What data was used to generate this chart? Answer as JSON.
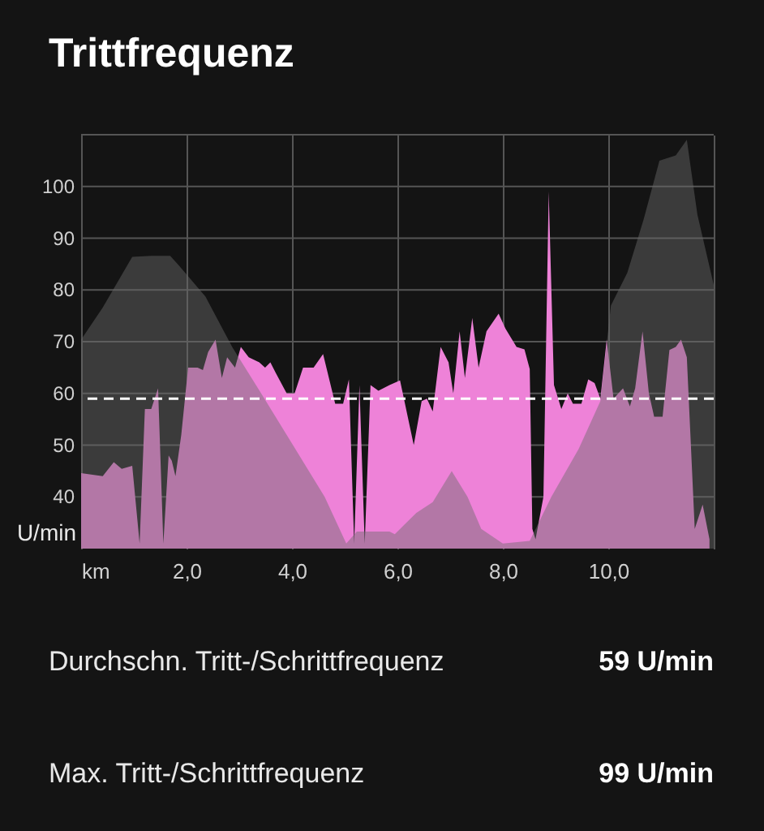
{
  "chart_data": {
    "type": "area",
    "title": "Trittfrequenz",
    "ylabel": "U/min",
    "x": [
      0,
      0.41,
      0.62,
      0.77,
      0.97,
      1.11,
      1.21,
      1.33,
      1.46,
      1.56,
      1.66,
      1.72,
      1.79,
      1.9,
      2.03,
      2.21,
      2.31,
      2.41,
      2.55,
      2.67,
      2.77,
      2.92,
      3.03,
      3.18,
      3.38,
      3.49,
      3.59,
      3.69,
      3.9,
      4.05,
      4.21,
      4.41,
      4.59,
      4.82,
      4.97,
      5.08,
      5.18,
      5.28,
      5.38,
      5.49,
      5.64,
      5.85,
      6.05,
      6.31,
      6.46,
      6.56,
      6.67,
      6.82,
      6.97,
      7.06,
      7.18,
      7.28,
      7.42,
      7.54,
      7.69,
      7.92,
      8.05,
      8.26,
      8.41,
      8.51,
      8.56,
      8.62,
      8.77,
      8.87,
      8.97,
      9.11,
      9.23,
      9.33,
      9.49,
      9.62,
      9.74,
      9.85,
      9.97,
      10.1,
      10.28,
      10.41,
      10.51,
      10.65,
      10.77,
      10.87,
      11.03,
      11.16,
      11.28,
      11.38,
      11.49,
      11.64,
      11.79,
      11.92
    ],
    "series": [
      {
        "color": "#ee82d8",
        "values": [
          44.6,
          44,
          46.7,
          45.4,
          46,
          31,
          57,
          57,
          61,
          31,
          48,
          47,
          44,
          52,
          65,
          65,
          64.5,
          68,
          70.4,
          63,
          67,
          65,
          69,
          67,
          66,
          65,
          66,
          64,
          60,
          60,
          65,
          65,
          67.6,
          58,
          58,
          62.7,
          31,
          61.6,
          31,
          61.6,
          60.5,
          61.6,
          62.5,
          50,
          58.5,
          59,
          56.5,
          69,
          66,
          60,
          72,
          63,
          74.6,
          65,
          72,
          75.4,
          72.5,
          69,
          68.5,
          64.7,
          33.8,
          31.8,
          40,
          99,
          61.6,
          57,
          60,
          58,
          58,
          62.7,
          62,
          59,
          70.4,
          59,
          61,
          57.5,
          61,
          72,
          60,
          55.5,
          55.5,
          68.4,
          69,
          70.4,
          67,
          33.8,
          38.5,
          31.8
        ]
      },
      {
        "type": "area",
        "color": "#6a6a6a",
        "x": [
          0,
          0.41,
          0.97,
          1.33,
          1.69,
          1.85,
          2.36,
          2.87,
          3.38,
          4.0,
          4.62,
          5.03,
          5.23,
          5.85,
          5.95,
          6.36,
          6.67,
          7.03,
          7.33,
          7.59,
          8.0,
          8.51,
          8.92,
          9.44,
          9.85,
          10.05,
          10.36,
          10.67,
          10.97,
          11.28,
          11.49,
          11.69,
          12.0
        ],
        "values": [
          70.4,
          76.6,
          86.4,
          86.6,
          86.6,
          84.8,
          78.7,
          68.9,
          60.6,
          50.3,
          40,
          31,
          33.3,
          33.3,
          32.8,
          36.9,
          39,
          45,
          40,
          33.8,
          31,
          31.5,
          40,
          49.3,
          58.5,
          77,
          83.3,
          93.6,
          105,
          106,
          109,
          94.6,
          81
        ]
      }
    ],
    "xlim": [
      0,
      12
    ],
    "xticks": [
      {
        "value": 0,
        "label": "km"
      },
      {
        "value": 2,
        "label": "2,0"
      },
      {
        "value": 4,
        "label": "4,0"
      },
      {
        "value": 6,
        "label": "6,0"
      },
      {
        "value": 8,
        "label": "8,0"
      },
      {
        "value": 10,
        "label": "10,0"
      },
      {
        "value": 12,
        "label": null
      }
    ],
    "ylim": [
      30,
      110
    ],
    "yticks": [
      40,
      50,
      60,
      70,
      80,
      90,
      100,
      {
        "value": 110,
        "label": null
      }
    ],
    "grid": true,
    "ref_lines": [
      {
        "axis": "y",
        "value": 59,
        "label": null,
        "color": "#ffffff",
        "line_style": "dashed"
      }
    ],
    "annotations": [
      "Durchschn. Tritt-/Schrittfrequenz",
      "59 U/min",
      "Max. Tritt-/Schrittfrequenz",
      "99 U/min"
    ]
  }
}
